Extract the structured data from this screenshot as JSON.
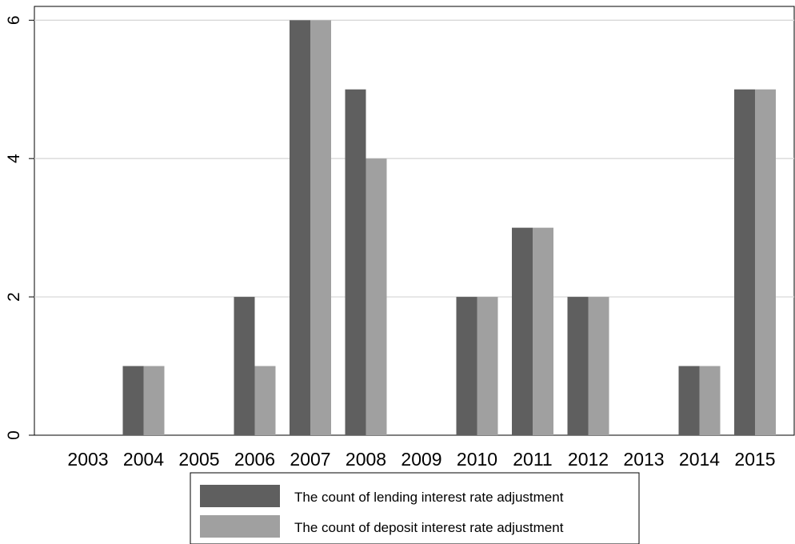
{
  "chart_data": {
    "type": "bar",
    "categories": [
      "2003",
      "2004",
      "2005",
      "2006",
      "2007",
      "2008",
      "2009",
      "2010",
      "2011",
      "2012",
      "2013",
      "2014",
      "2015"
    ],
    "series": [
      {
        "name": "The count of lending interest rate adjustment",
        "color": "#5f5f5f",
        "values": [
          0,
          1,
          0,
          2,
          6,
          5,
          0,
          2,
          3,
          2,
          0,
          1,
          5
        ]
      },
      {
        "name": "The count of deposit interest rate adjustment",
        "color": "#a0a0a0",
        "values": [
          0,
          1,
          0,
          1,
          6,
          4,
          0,
          2,
          3,
          2,
          0,
          1,
          5
        ]
      }
    ],
    "yticks": [
      "0",
      "2",
      "4",
      "6"
    ],
    "ylim": [
      0,
      6.2
    ],
    "grid": true,
    "legend_position": "bottom"
  }
}
